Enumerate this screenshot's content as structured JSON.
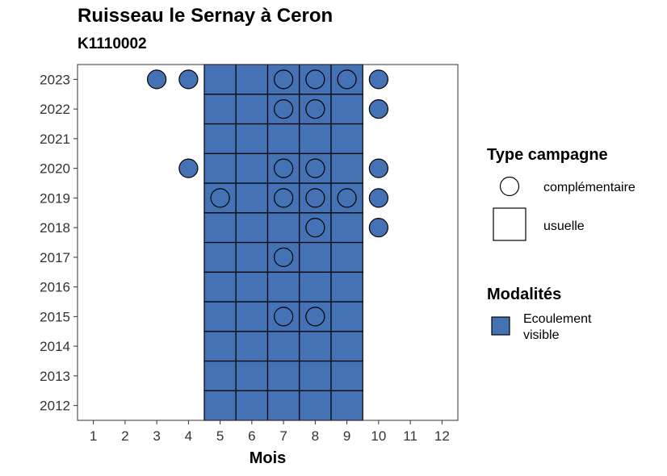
{
  "chart_data": {
    "type": "heatmap",
    "title": "Ruisseau le Sernay à Ceron",
    "subtitle": "K1110002",
    "xlabel": "Mois",
    "ylabel": "",
    "x_ticks": [
      1,
      2,
      3,
      4,
      5,
      6,
      7,
      8,
      9,
      10,
      11,
      12
    ],
    "y_ticks": [
      2012,
      2013,
      2014,
      2015,
      2016,
      2017,
      2018,
      2019,
      2020,
      2021,
      2022,
      2023
    ],
    "xlim": [
      0.5,
      12.5
    ],
    "ylim": [
      2011.5,
      2023.5
    ],
    "fill_color": "#4472b4",
    "legend_shape": {
      "title": "Type campagne",
      "entries": [
        {
          "label": "complémentaire",
          "shape": "circle"
        },
        {
          "label": "usuelle",
          "shape": "square"
        }
      ]
    },
    "legend_fill": {
      "title": "Modalités",
      "entries": [
        {
          "label_lines": [
            "Ecoulement",
            "visible"
          ],
          "color": "#4472b4"
        }
      ]
    },
    "usuelle_months": [
      5,
      6,
      7,
      8,
      9
    ],
    "usuelle_years": [
      2012,
      2013,
      2014,
      2015,
      2016,
      2017,
      2018,
      2019,
      2020,
      2021,
      2022,
      2023
    ],
    "complementaire_points": [
      {
        "year": 2023,
        "months": [
          3,
          4,
          7,
          8,
          9,
          10
        ]
      },
      {
        "year": 2022,
        "months": [
          7,
          8,
          10
        ]
      },
      {
        "year": 2020,
        "months": [
          4,
          7,
          8,
          10
        ]
      },
      {
        "year": 2019,
        "months": [
          5,
          7,
          8,
          9,
          10
        ]
      },
      {
        "year": 2018,
        "months": [
          8,
          10
        ]
      },
      {
        "year": 2017,
        "months": [
          7
        ]
      },
      {
        "year": 2015,
        "months": [
          7,
          8
        ]
      }
    ]
  }
}
